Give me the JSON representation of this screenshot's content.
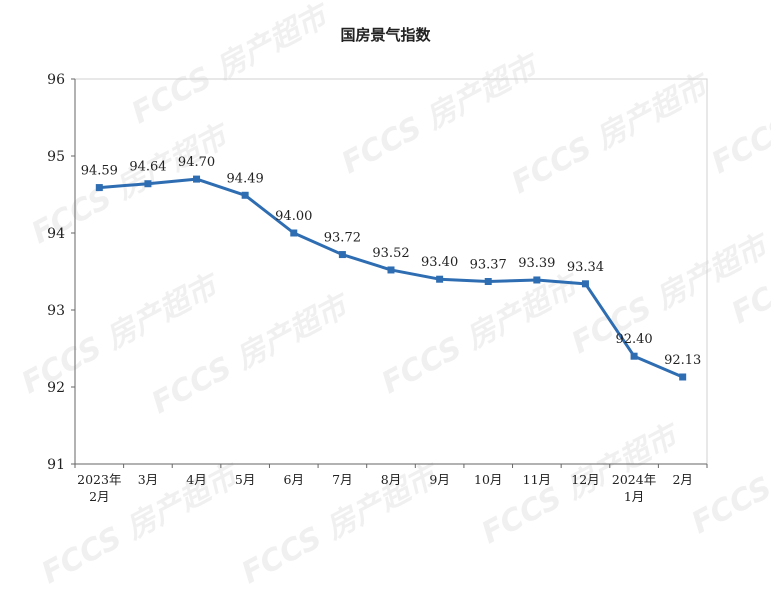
{
  "watermark": {
    "text": "FCCS 房产超市"
  },
  "chart_data": {
    "type": "line",
    "title": "国房景气指数",
    "xlabel": "",
    "ylabel": "",
    "categories": [
      "2023年\n2月",
      "3月",
      "4月",
      "5月",
      "6月",
      "7月",
      "8月",
      "9月",
      "10月",
      "11月",
      "12月",
      "2024年\n1月",
      "2月"
    ],
    "series": [
      {
        "name": "",
        "values": [
          94.59,
          94.64,
          94.7,
          94.49,
          94.0,
          93.72,
          93.52,
          93.4,
          93.37,
          93.39,
          93.34,
          92.4,
          92.13
        ],
        "color": "#2e6db2"
      }
    ],
    "data_labels": [
      "94.59",
      "94.64",
      "94.70",
      "94.49",
      "94.00",
      "93.72",
      "93.52",
      "93.40",
      "93.37",
      "93.39",
      "93.34",
      "92.40",
      "92.13"
    ],
    "yticks": [
      91,
      92,
      93,
      94,
      95,
      96
    ],
    "ylim": [
      91,
      96
    ],
    "grid": false,
    "legend": "none"
  }
}
